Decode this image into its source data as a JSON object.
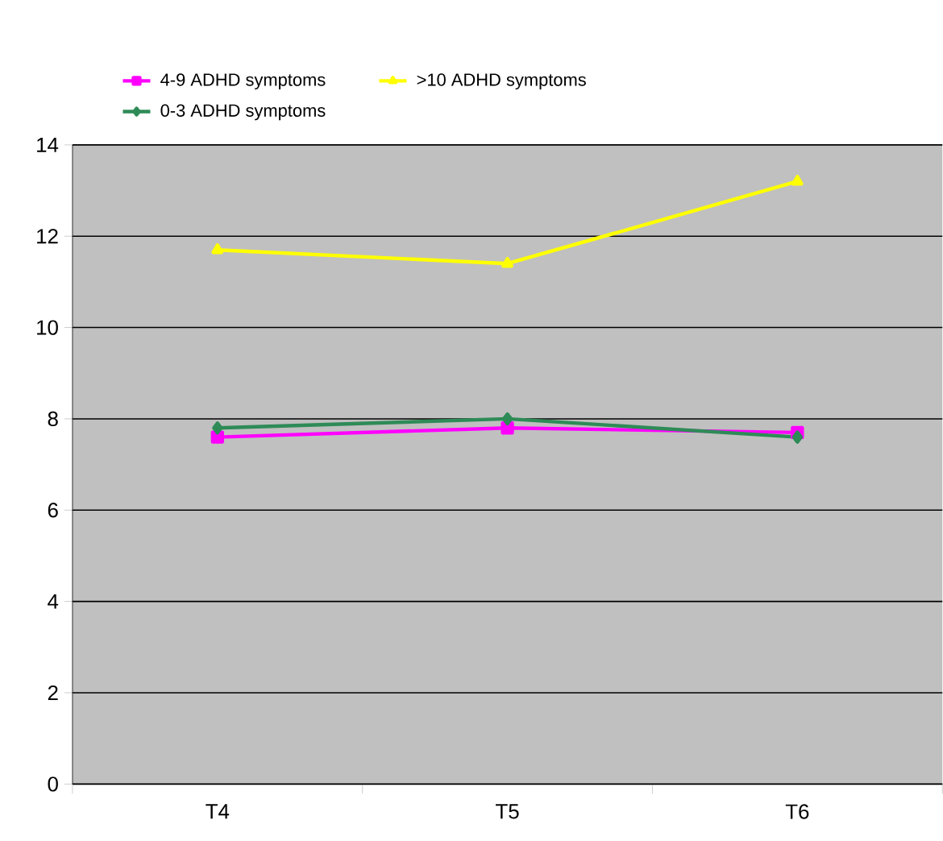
{
  "chart_data": {
    "type": "line",
    "categories": [
      "T4",
      "T5",
      "T6"
    ],
    "series": [
      {
        "name": "4-9 ADHD symptoms",
        "color": "#ff00ff",
        "marker": "square",
        "values": [
          7.6,
          7.8,
          7.7
        ]
      },
      {
        "name": "0-3 ADHD symptoms",
        "color": "#2e8b57",
        "marker": "diamond",
        "values": [
          7.8,
          8.0,
          7.6
        ]
      },
      {
        "name": ">10 ADHD symptoms",
        "color": "#ffff00",
        "marker": "triangle",
        "values": [
          11.7,
          11.4,
          13.2
        ]
      }
    ],
    "ylim": [
      0,
      14
    ],
    "yticks": [
      0,
      2,
      4,
      6,
      8,
      10,
      12,
      14
    ],
    "grid": "y",
    "legend": "top"
  }
}
